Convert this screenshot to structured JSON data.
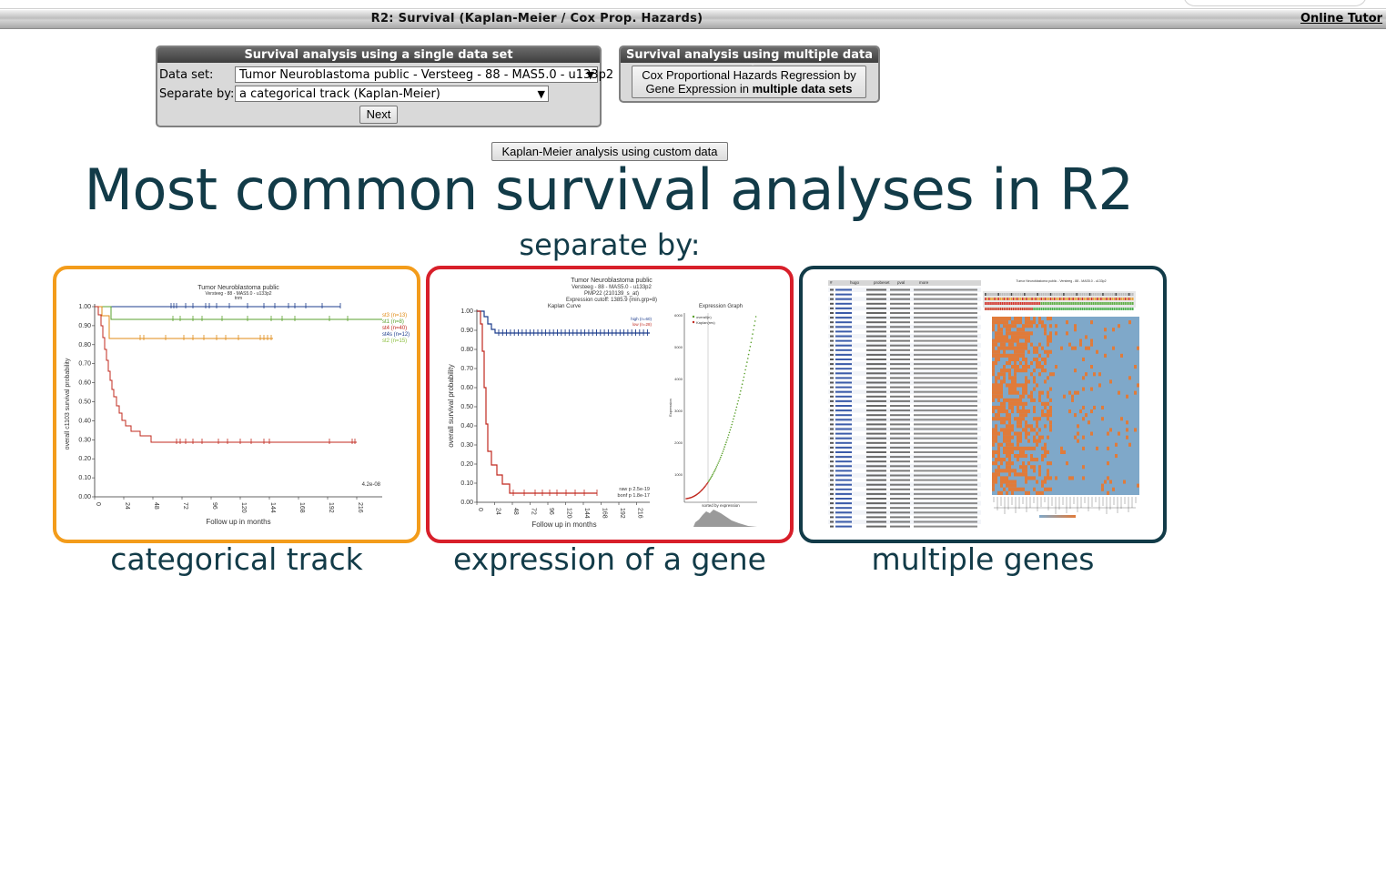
{
  "window": {
    "title": "R2: Survival (Kaplan-Meier / Cox Prop. Hazards)",
    "tutorial_link": "Online Tutor"
  },
  "single_panel": {
    "header": "Survival analysis using a single data set",
    "dataset_label": "Data set:",
    "dataset_value": "Tumor Neuroblastoma public - Versteeg - 88 - MAS5.0 - u133p2",
    "separate_label": "Separate by:",
    "separate_value": "a categorical track (Kaplan-Meier)",
    "next_button": "Next"
  },
  "multi_panel": {
    "header": "Survival analysis using multiple data sets",
    "button_line1": "Cox Proportional Hazards Regression by",
    "button_line2_prefix": "Gene Expression in ",
    "button_line2_bold": "multiple data sets"
  },
  "custom_button": "Kaplan-Meier analysis using custom data",
  "headline": "Most common survival analyses in R2",
  "subheadline": "separate by:",
  "cards": [
    {
      "caption": "categorical track",
      "accent": "#f39c1b",
      "plot": {
        "title": "Tumor Neuroblastoma public",
        "subtitle": "Versteeg - 88 - MAS5.0 - u133p2",
        "subtitle2": "tnm",
        "ylabel": "overall c1103 survival probability",
        "xlabel": "Follow up in months",
        "yticks": [
          "1.00",
          "0.90",
          "0.80",
          "0.70",
          "0.60",
          "0.50",
          "0.40",
          "0.30",
          "0.20",
          "0.10",
          "0.00"
        ],
        "xticks": [
          "0",
          "24",
          "48",
          "72",
          "96",
          "120",
          "144",
          "168",
          "192",
          "216"
        ],
        "legend": [
          {
            "label": "st3 (n=13)",
            "color": "#e08a14"
          },
          {
            "label": "st1 (n=8)",
            "color": "#5aa02c"
          },
          {
            "label": "st4 (n=40)",
            "color": "#c0281e"
          },
          {
            "label": "st4s (n=12)",
            "color": "#1c3c8c"
          },
          {
            "label": "st2 (n=15)",
            "color": "#8cbf3f"
          }
        ],
        "pvalue": "4.2e-08"
      }
    },
    {
      "caption": "expression of a gene",
      "accent": "#d81f2a",
      "plot": {
        "title": "Tumor Neuroblastoma public",
        "subtitle": "Versteeg - 88 - MAS5.0 - u133p2",
        "gene": "PMP22 (210139_s_at)",
        "cutoff": "Expression cutoff: 1385.9 (min.grp=8)",
        "panel1": "Kaplan Curve",
        "panel2": "Expression Graph",
        "ylabel": "overall survival probability",
        "xlabel": "Follow up in months",
        "yticks": [
          "1.00",
          "0.90",
          "0.80",
          "0.70",
          "0.60",
          "0.50",
          "0.40",
          "0.30",
          "0.20",
          "0.10",
          "0.00"
        ],
        "xticks": [
          "0",
          "24",
          "48",
          "72",
          "96",
          "120",
          "144",
          "168",
          "192",
          "216"
        ],
        "legend": [
          {
            "label": "high (n=60)",
            "color": "#1c3c8c"
          },
          {
            "label": "low (n=28)",
            "color": "#c0281e"
          }
        ],
        "pvalues": [
          "raw p 2.5e-19",
          "bonf p 1.8e-17"
        ],
        "expr_ylabel": "Expression",
        "expr_yticks": [
          "6000",
          "5000",
          "4000",
          "3000",
          "2000",
          "1000"
        ],
        "expr_legend": [
          "overall(n)",
          "Kaplan(res)"
        ],
        "sorted_label": "sorted by expression"
      }
    },
    {
      "caption": "multiple genes",
      "accent": "#123b48",
      "plot": {
        "heatmap_title": "Tumor Neuroblastoma public - Versteeg - 88 - MAS5.0 - u133p2",
        "table_headers": [
          "#",
          "hugo",
          "probeset",
          "pval",
          "more"
        ]
      }
    }
  ]
}
